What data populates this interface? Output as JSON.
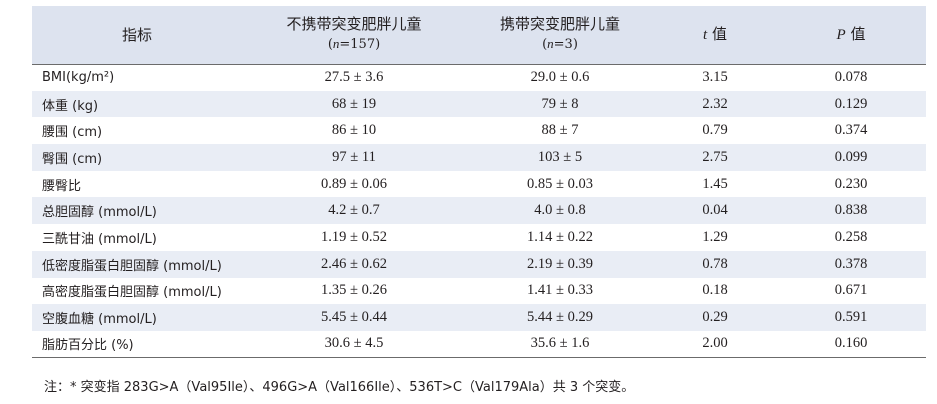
{
  "header": {
    "col1": "指标",
    "col2_title": "不携带突变肥胖儿童",
    "col2_sub_pre": "(",
    "col2_sub_n": "n",
    "col2_sub_post": "=157)",
    "col3_title": "携带突变肥胖儿童",
    "col3_sub_pre": "(",
    "col3_sub_n": "n",
    "col3_sub_post": "=3)",
    "col4_sym": "t",
    "col4_word": " 值",
    "col5_sym": "P",
    "col5_word": " 值"
  },
  "rows": [
    {
      "name": "BMI(kg/m²)",
      "noncarrier": "27.5 ± 3.6",
      "carrier": "29.0 ± 0.6",
      "t": "3.15",
      "p": "0.078"
    },
    {
      "name": "体重 (kg)",
      "noncarrier": "68 ± 19",
      "carrier": "79 ± 8",
      "t": "2.32",
      "p": "0.129"
    },
    {
      "name": "腰围 (cm)",
      "noncarrier": "86 ± 10",
      "carrier": "88 ± 7",
      "t": "0.79",
      "p": "0.374"
    },
    {
      "name": "臀围 (cm)",
      "noncarrier": "97 ± 11",
      "carrier": "103 ± 5",
      "t": "2.75",
      "p": "0.099"
    },
    {
      "name": "腰臀比",
      "noncarrier": "0.89 ± 0.06",
      "carrier": "0.85 ± 0.03",
      "t": "1.45",
      "p": "0.230"
    },
    {
      "name": "总胆固醇 (mmol/L)",
      "noncarrier": "4.2 ± 0.7",
      "carrier": "4.0 ± 0.8",
      "t": "0.04",
      "p": "0.838"
    },
    {
      "name": "三酰甘油 (mmol/L)",
      "noncarrier": "1.19 ± 0.52",
      "carrier": "1.14 ± 0.22",
      "t": "1.29",
      "p": "0.258"
    },
    {
      "name": "低密度脂蛋白胆固醇 (mmol/L)",
      "noncarrier": "2.46 ± 0.62",
      "carrier": "2.19 ± 0.39",
      "t": "0.78",
      "p": "0.378"
    },
    {
      "name": "高密度脂蛋白胆固醇 (mmol/L)",
      "noncarrier": "1.35 ± 0.26",
      "carrier": "1.41 ± 0.33",
      "t": "0.18",
      "p": "0.671"
    },
    {
      "name": "空腹血糖 (mmol/L)",
      "noncarrier": "5.45 ± 0.44",
      "carrier": "5.44 ± 0.29",
      "t": "0.29",
      "p": "0.591"
    },
    {
      "name": "脂肪百分比 (%)",
      "noncarrier": "30.6 ± 4.5",
      "carrier": "35.6 ± 1.6",
      "t": "2.00",
      "p": "0.160"
    }
  ],
  "footnote": "注：* 突变指 283G>A（Val95Ile）、496G>A（Val166Ile）、536T>C（Val179Ala）共 3 个突变。"
}
